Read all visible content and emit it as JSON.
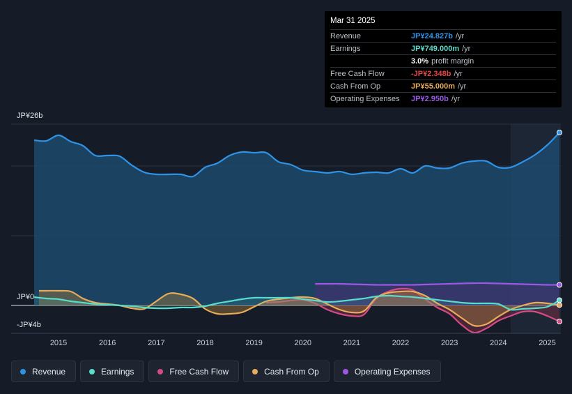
{
  "chart_data": {
    "type": "area",
    "ylabel_ticks": [
      "JP¥26b",
      "JP¥0",
      "-JP¥4b"
    ],
    "ylim": [
      -4,
      26
    ],
    "xlim": [
      2014.5,
      2025.25
    ],
    "x_ticks": [
      "2015",
      "2016",
      "2017",
      "2018",
      "2019",
      "2020",
      "2021",
      "2022",
      "2023",
      "2024",
      "2025"
    ],
    "forecast_start": 2024.25,
    "series": [
      {
        "name": "Revenue",
        "color": "#2e93e6",
        "x": [
          2014.5,
          2014.75,
          2015.0,
          2015.25,
          2015.5,
          2015.75,
          2016.0,
          2016.25,
          2016.5,
          2016.75,
          2017.0,
          2017.25,
          2017.5,
          2017.75,
          2018.0,
          2018.25,
          2018.5,
          2018.75,
          2019.0,
          2019.25,
          2019.5,
          2019.75,
          2020.0,
          2020.25,
          2020.5,
          2020.75,
          2021.0,
          2021.25,
          2021.5,
          2021.75,
          2022.0,
          2022.25,
          2022.5,
          2022.75,
          2023.0,
          2023.25,
          2023.5,
          2023.75,
          2024.0,
          2024.25,
          2024.5,
          2024.75,
          2025.0,
          2025.25
        ],
        "values": [
          23.7,
          23.6,
          24.4,
          23.5,
          22.9,
          21.5,
          21.5,
          21.4,
          20.1,
          19.1,
          18.8,
          18.8,
          18.8,
          18.5,
          19.8,
          20.4,
          21.5,
          22.0,
          21.9,
          21.9,
          20.6,
          20.2,
          19.4,
          19.2,
          19.0,
          19.2,
          18.8,
          19.0,
          19.1,
          19.0,
          19.6,
          19.0,
          20.0,
          19.7,
          19.7,
          20.4,
          20.7,
          20.7,
          19.8,
          19.8,
          20.6,
          21.6,
          23.0,
          24.8
        ]
      },
      {
        "name": "Earnings",
        "color": "#59dccb",
        "x": [
          2014.5,
          2014.75,
          2015.0,
          2015.25,
          2015.5,
          2015.75,
          2016.0,
          2016.25,
          2016.5,
          2016.75,
          2017.0,
          2017.25,
          2017.5,
          2017.75,
          2018.0,
          2018.25,
          2018.5,
          2018.75,
          2019.0,
          2019.25,
          2019.5,
          2019.75,
          2020.0,
          2020.25,
          2020.5,
          2020.75,
          2021.0,
          2021.25,
          2021.5,
          2021.75,
          2022.0,
          2022.25,
          2022.5,
          2022.75,
          2023.0,
          2023.25,
          2023.5,
          2023.75,
          2024.0,
          2024.25,
          2024.5,
          2024.75,
          2025.0,
          2025.25
        ],
        "values": [
          1.2,
          1.0,
          0.9,
          0.6,
          0.4,
          0.2,
          0.1,
          0.0,
          -0.1,
          -0.3,
          -0.4,
          -0.4,
          -0.3,
          -0.3,
          -0.1,
          0.3,
          0.6,
          0.9,
          1.1,
          1.1,
          1.1,
          1.1,
          0.9,
          0.7,
          0.5,
          0.6,
          0.8,
          1.0,
          1.3,
          1.4,
          1.3,
          1.2,
          1.0,
          0.8,
          0.6,
          0.4,
          0.3,
          0.3,
          0.2,
          -0.6,
          -0.5,
          -0.4,
          -0.2,
          0.75
        ]
      },
      {
        "name": "Free Cash Flow",
        "color": "#d54b86",
        "x": [
          2019.25,
          2019.5,
          2019.75,
          2020.0,
          2020.25,
          2020.5,
          2020.75,
          2021.0,
          2021.25,
          2021.5,
          2021.75,
          2022.0,
          2022.25,
          2022.5,
          2022.75,
          2023.0,
          2023.25,
          2023.5,
          2023.75,
          2024.0,
          2024.25,
          2024.5,
          2024.75,
          2025.0,
          2025.25
        ],
        "values": [
          0.4,
          0.5,
          0.7,
          0.8,
          0.3,
          -0.6,
          -1.2,
          -1.5,
          -1.3,
          1.0,
          2.0,
          2.4,
          2.2,
          0.9,
          -0.3,
          -1.2,
          -2.8,
          -3.9,
          -3.3,
          -2.2,
          -1.5,
          -0.9,
          -0.9,
          -1.5,
          -2.3
        ]
      },
      {
        "name": "Cash From Op",
        "color": "#e8ab5a",
        "x": [
          2014.6,
          2014.75,
          2015.0,
          2015.25,
          2015.5,
          2015.75,
          2016.0,
          2016.25,
          2016.5,
          2016.75,
          2017.0,
          2017.25,
          2017.5,
          2017.75,
          2018.0,
          2018.25,
          2018.5,
          2018.75,
          2019.0,
          2019.25,
          2019.5,
          2019.75,
          2020.0,
          2020.25,
          2020.5,
          2020.75,
          2021.0,
          2021.25,
          2021.5,
          2021.75,
          2022.0,
          2022.25,
          2022.5,
          2022.75,
          2023.0,
          2023.25,
          2023.5,
          2023.75,
          2024.0,
          2024.25,
          2024.5,
          2024.75,
          2025.0,
          2025.25
        ],
        "values": [
          2.1,
          2.1,
          2.1,
          2.0,
          1.0,
          0.4,
          0.2,
          0.0,
          -0.4,
          -0.5,
          0.6,
          1.7,
          1.6,
          1.0,
          -0.5,
          -1.2,
          -1.2,
          -1.0,
          -0.2,
          0.6,
          0.9,
          1.1,
          1.2,
          1.0,
          0.2,
          -0.6,
          -1.0,
          -0.8,
          1.1,
          1.8,
          2.0,
          2.0,
          1.4,
          0.3,
          -0.6,
          -1.8,
          -2.9,
          -2.7,
          -1.6,
          -0.6,
          0.0,
          0.4,
          0.3,
          0.06
        ]
      },
      {
        "name": "Operating Expenses",
        "color": "#9b58e6",
        "x": [
          2020.25,
          2020.5,
          2020.75,
          2021.0,
          2021.25,
          2021.5,
          2021.75,
          2022.0,
          2022.25,
          2022.5,
          2022.75,
          2023.0,
          2023.25,
          2023.5,
          2023.75,
          2024.0,
          2024.25,
          2024.5,
          2024.75,
          2025.0,
          2025.25
        ],
        "values": [
          3.1,
          3.1,
          3.1,
          3.05,
          3.0,
          2.95,
          2.95,
          2.95,
          2.95,
          3.0,
          3.05,
          3.1,
          3.15,
          3.2,
          3.2,
          3.15,
          3.1,
          3.05,
          3.0,
          2.95,
          2.95
        ]
      }
    ]
  },
  "tooltip": {
    "date": "Mar 31 2025",
    "rows": [
      {
        "label": "Revenue",
        "value": "JP¥24.827b",
        "unit": "/yr",
        "color": "#2e93e6"
      },
      {
        "label": "Earnings",
        "value": "JP¥749.000m",
        "unit": "/yr",
        "color": "#59dccb"
      },
      {
        "label": "",
        "value": "3.0%",
        "unit": "profit margin",
        "color": "#ffffff"
      },
      {
        "label": "Free Cash Flow",
        "value": "-JP¥2.348b",
        "unit": "/yr",
        "color": "#e64545"
      },
      {
        "label": "Cash From Op",
        "value": "JP¥55.000m",
        "unit": "/yr",
        "color": "#e8ab5a"
      },
      {
        "label": "Operating Expenses",
        "value": "JP¥2.950b",
        "unit": "/yr",
        "color": "#9b58e6"
      }
    ]
  },
  "legend": [
    {
      "label": "Revenue",
      "color": "#2e93e6"
    },
    {
      "label": "Earnings",
      "color": "#59dccb"
    },
    {
      "label": "Free Cash Flow",
      "color": "#d54b86"
    },
    {
      "label": "Cash From Op",
      "color": "#e8ab5a"
    },
    {
      "label": "Operating Expenses",
      "color": "#9b58e6"
    }
  ]
}
